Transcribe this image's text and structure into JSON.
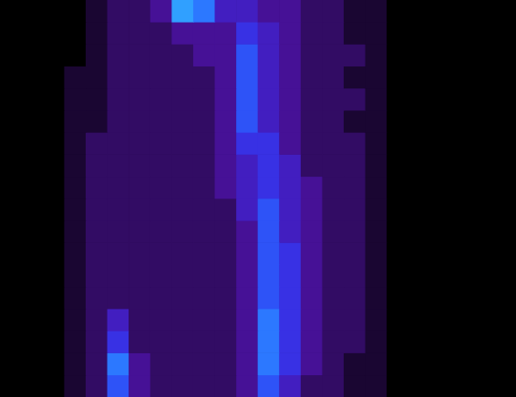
{
  "chart_data": {
    "type": "heatmap",
    "tick_labels": false,
    "grid": false,
    "z": [
      [
        0,
        0,
        0,
        0,
        1,
        2,
        2,
        3,
        8,
        7,
        4,
        4,
        3,
        3,
        2,
        2,
        1,
        1,
        0,
        0,
        0,
        0,
        0,
        0
      ],
      [
        0,
        0,
        0,
        0,
        1,
        2,
        2,
        2,
        3,
        3,
        3,
        5,
        4,
        3,
        2,
        2,
        1,
        1,
        0,
        0,
        0,
        0,
        0,
        0
      ],
      [
        0,
        0,
        0,
        0,
        1,
        2,
        2,
        2,
        2,
        3,
        3,
        6,
        4,
        3,
        2,
        2,
        2,
        1,
        0,
        0,
        0,
        0,
        0,
        0
      ],
      [
        0,
        0,
        0,
        1,
        1,
        2,
        2,
        2,
        2,
        2,
        3,
        6,
        4,
        3,
        2,
        2,
        1,
        1,
        0,
        0,
        0,
        0,
        0,
        0
      ],
      [
        0,
        0,
        0,
        1,
        1,
        2,
        2,
        2,
        2,
        2,
        3,
        6,
        4,
        3,
        2,
        2,
        2,
        1,
        0,
        0,
        0,
        0,
        0,
        0
      ],
      [
        0,
        0,
        0,
        1,
        1,
        2,
        2,
        2,
        2,
        2,
        3,
        6,
        4,
        3,
        2,
        2,
        1,
        1,
        0,
        0,
        0,
        0,
        0,
        0
      ],
      [
        0,
        0,
        0,
        1,
        2,
        2,
        2,
        2,
        2,
        2,
        3,
        5,
        5,
        3,
        2,
        2,
        2,
        1,
        0,
        0,
        0,
        0,
        0,
        0
      ],
      [
        0,
        0,
        0,
        1,
        2,
        2,
        2,
        2,
        2,
        2,
        3,
        4,
        5,
        4,
        2,
        2,
        2,
        1,
        0,
        0,
        0,
        0,
        0,
        0
      ],
      [
        0,
        0,
        0,
        1,
        2,
        2,
        2,
        2,
        2,
        2,
        3,
        4,
        5,
        4,
        3,
        2,
        2,
        1,
        0,
        0,
        0,
        0,
        0,
        0
      ],
      [
        0,
        0,
        0,
        1,
        2,
        2,
        2,
        2,
        2,
        2,
        2,
        4,
        6,
        4,
        3,
        2,
        2,
        1,
        0,
        0,
        0,
        0,
        0,
        0
      ],
      [
        0,
        0,
        0,
        1,
        2,
        2,
        2,
        2,
        2,
        2,
        2,
        3,
        6,
        4,
        3,
        2,
        2,
        1,
        0,
        0,
        0,
        0,
        0,
        0
      ],
      [
        0,
        0,
        0,
        1,
        2,
        2,
        2,
        2,
        2,
        2,
        2,
        3,
        6,
        5,
        3,
        2,
        2,
        1,
        0,
        0,
        0,
        0,
        0,
        0
      ],
      [
        0,
        0,
        0,
        1,
        2,
        2,
        2,
        2,
        2,
        2,
        2,
        3,
        6,
        5,
        3,
        2,
        2,
        1,
        0,
        0,
        0,
        0,
        0,
        0
      ],
      [
        0,
        0,
        0,
        1,
        2,
        2,
        2,
        2,
        2,
        2,
        2,
        3,
        6,
        5,
        3,
        2,
        2,
        1,
        0,
        0,
        0,
        0,
        0,
        0
      ],
      [
        0,
        0,
        0,
        1,
        2,
        4,
        2,
        2,
        2,
        2,
        2,
        3,
        7,
        5,
        3,
        2,
        2,
        1,
        0,
        0,
        0,
        0,
        0,
        0
      ],
      [
        0,
        0,
        0,
        1,
        2,
        5,
        2,
        2,
        2,
        2,
        2,
        3,
        7,
        5,
        3,
        2,
        2,
        1,
        0,
        0,
        0,
        0,
        0,
        0
      ],
      [
        0,
        0,
        0,
        1,
        2,
        7,
        3,
        2,
        2,
        2,
        2,
        3,
        7,
        5,
        3,
        2,
        1,
        1,
        0,
        0,
        0,
        0,
        0,
        0
      ],
      [
        0,
        0,
        0,
        1,
        2,
        6,
        3,
        2,
        2,
        2,
        2,
        3,
        6,
        4,
        2,
        2,
        1,
        1,
        0,
        0,
        0,
        0,
        0,
        0
      ]
    ]
  }
}
